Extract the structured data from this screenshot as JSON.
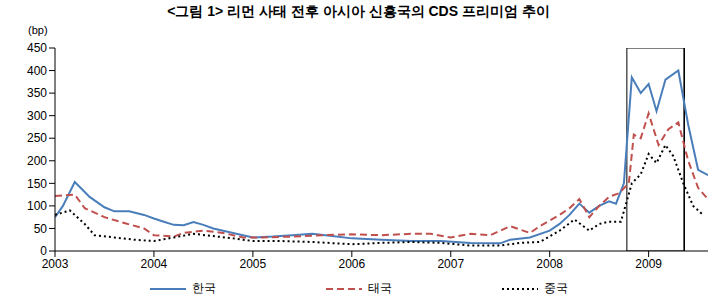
{
  "chart_data": {
    "type": "line",
    "title": "<그림 1> 리먼 사태 전후 아시아 신흥국의 CDS 프리미엄 추이",
    "y_label": "(bp)",
    "xlim": [
      2003,
      2009.6
    ],
    "xticks": [
      2003,
      2004,
      2005,
      2006,
      2007,
      2008,
      2009
    ],
    "ylim": [
      0,
      450
    ],
    "yticks": [
      0,
      50,
      100,
      150,
      200,
      250,
      300,
      350,
      400,
      450
    ],
    "grid": false,
    "legend": "bottom",
    "highlight_range": [
      2008.78,
      2009.36
    ],
    "reference_line_x": 2009.36,
    "series": [
      {
        "name": "한국",
        "color": "#4a7ebb",
        "line_style": "solid",
        "x": [
          2003.0,
          2003.08,
          2003.2,
          2003.35,
          2003.5,
          2003.6,
          2003.75,
          2003.9,
          2004.0,
          2004.1,
          2004.2,
          2004.3,
          2004.4,
          2004.5,
          2004.6,
          2004.8,
          2005.0,
          2005.2,
          2005.4,
          2005.6,
          2005.8,
          2006.0,
          2006.3,
          2006.6,
          2006.9,
          2007.2,
          2007.5,
          2007.6,
          2007.8,
          2008.0,
          2008.1,
          2008.2,
          2008.3,
          2008.4,
          2008.5,
          2008.6,
          2008.67,
          2008.75,
          2008.83,
          2008.92,
          2009.0,
          2009.08,
          2009.17,
          2009.3,
          2009.4,
          2009.5,
          2009.6
        ],
        "values": [
          75,
          100,
          153,
          120,
          97,
          88,
          88,
          80,
          72,
          65,
          58,
          57,
          64,
          58,
          50,
          40,
          30,
          32,
          35,
          38,
          33,
          28,
          25,
          22,
          22,
          18,
          17,
          25,
          30,
          45,
          60,
          80,
          105,
          85,
          100,
          110,
          105,
          150,
          385,
          350,
          370,
          310,
          380,
          400,
          280,
          180,
          168
        ]
      },
      {
        "name": "태국",
        "color": "#c0504d",
        "line_style": "dashed",
        "x": [
          2003.0,
          2003.2,
          2003.3,
          2003.5,
          2003.7,
          2003.9,
          2004.0,
          2004.2,
          2004.3,
          2004.5,
          2004.7,
          2004.9,
          2005.1,
          2005.4,
          2005.7,
          2006.0,
          2006.3,
          2006.6,
          2006.8,
          2007.0,
          2007.2,
          2007.4,
          2007.6,
          2007.8,
          2007.9,
          2008.1,
          2008.2,
          2008.3,
          2008.4,
          2008.5,
          2008.6,
          2008.7,
          2008.8,
          2008.85,
          2008.92,
          2009.0,
          2009.1,
          2009.2,
          2009.3,
          2009.4,
          2009.5,
          2009.6
        ],
        "values": [
          122,
          125,
          95,
          75,
          62,
          50,
          35,
          32,
          40,
          45,
          40,
          30,
          30,
          32,
          35,
          37,
          35,
          38,
          38,
          30,
          38,
          35,
          55,
          40,
          55,
          80,
          95,
          115,
          75,
          100,
          120,
          128,
          150,
          258,
          250,
          305,
          235,
          270,
          285,
          200,
          140,
          115
        ]
      },
      {
        "name": "중국",
        "color": "#000000",
        "line_style": "dotted",
        "x": [
          2003.0,
          2003.15,
          2003.3,
          2003.4,
          2003.6,
          2003.8,
          2004.0,
          2004.2,
          2004.4,
          2004.6,
          2004.8,
          2005.0,
          2005.3,
          2005.6,
          2006.0,
          2006.3,
          2006.6,
          2006.9,
          2007.2,
          2007.5,
          2007.7,
          2007.9,
          2008.1,
          2008.25,
          2008.4,
          2008.5,
          2008.6,
          2008.72,
          2008.83,
          2008.92,
          2009.0,
          2009.08,
          2009.17,
          2009.25,
          2009.35,
          2009.45,
          2009.55
        ],
        "values": [
          80,
          90,
          60,
          35,
          30,
          25,
          22,
          30,
          38,
          33,
          28,
          22,
          22,
          20,
          15,
          18,
          20,
          18,
          12,
          12,
          18,
          20,
          45,
          70,
          45,
          60,
          65,
          65,
          150,
          170,
          215,
          195,
          235,
          210,
          150,
          100,
          80
        ]
      }
    ]
  }
}
